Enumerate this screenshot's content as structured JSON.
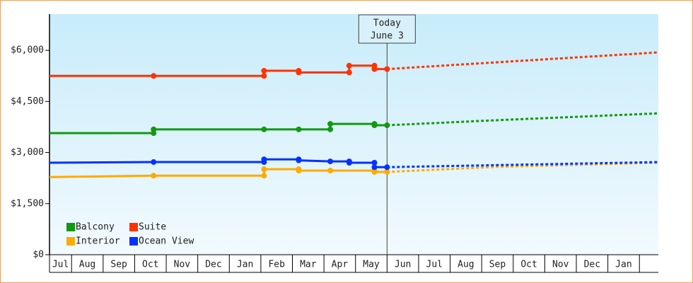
{
  "chart_data": {
    "type": "line",
    "xlim": [
      0.3,
      19.6
    ],
    "xticks": [
      {
        "value": 0,
        "label": "Jul"
      },
      {
        "value": 1,
        "label": "Aug"
      },
      {
        "value": 2,
        "label": "Sep"
      },
      {
        "value": 3,
        "label": "Oct"
      },
      {
        "value": 4,
        "label": "Nov"
      },
      {
        "value": 5,
        "label": "Dec"
      },
      {
        "value": 6,
        "label": "Jan"
      },
      {
        "value": 7,
        "label": "Feb"
      },
      {
        "value": 8,
        "label": "Mar"
      },
      {
        "value": 9,
        "label": "Apr"
      },
      {
        "value": 10,
        "label": "May"
      },
      {
        "value": 11,
        "label": "Jun"
      },
      {
        "value": 12,
        "label": "Jul"
      },
      {
        "value": 13,
        "label": "Aug"
      },
      {
        "value": 14,
        "label": "Sep"
      },
      {
        "value": 15,
        "label": "Oct"
      },
      {
        "value": 16,
        "label": "Nov"
      },
      {
        "value": 17,
        "label": "Dec"
      },
      {
        "value": 18,
        "label": "Jan"
      }
    ],
    "ylim": [
      0,
      7000
    ],
    "yticks": [
      {
        "value": 0,
        "label": "$0"
      },
      {
        "value": 1500,
        "label": "$1,500"
      },
      {
        "value": 3000,
        "label": "$3,000"
      },
      {
        "value": 4500,
        "label": "$4,500"
      },
      {
        "value": 6000,
        "label": "$6,000"
      }
    ],
    "today": {
      "x": 11.0,
      "label": "Today",
      "date": "June 3"
    },
    "series": [
      {
        "name": "Balcony",
        "color": "#119911",
        "x": [
          0.3,
          3.6,
          3.6,
          7.1,
          8.2,
          9.2,
          9.2,
          10.6,
          10.6,
          11.0
        ],
        "values": [
          3570,
          3570,
          3680,
          3680,
          3680,
          3680,
          3840,
          3840,
          3800,
          3800
        ],
        "forecast": {
          "x": [
            11.0,
            14.5,
            19.6
          ],
          "values": [
            3800,
            3950,
            4150
          ]
        }
      },
      {
        "name": "Suite",
        "color": "#ff3300",
        "x": [
          0.3,
          3.6,
          7.1,
          7.1,
          8.2,
          8.2,
          9.8,
          9.8,
          10.6,
          10.6,
          11.0
        ],
        "values": [
          5250,
          5250,
          5250,
          5400,
          5400,
          5350,
          5350,
          5550,
          5550,
          5450,
          5450
        ],
        "forecast": {
          "x": [
            11.0,
            14.5,
            19.6
          ],
          "values": [
            5450,
            5650,
            5940
          ]
        }
      },
      {
        "name": "Interior",
        "color": "#ffaa00",
        "x": [
          0.3,
          3.6,
          7.1,
          7.1,
          8.2,
          8.2,
          9.2,
          10.6,
          10.6,
          11.0
        ],
        "values": [
          2280,
          2320,
          2320,
          2510,
          2510,
          2470,
          2470,
          2470,
          2430,
          2430
        ],
        "forecast": {
          "x": [
            11.0,
            14.5,
            19.6
          ],
          "values": [
            2430,
            2580,
            2700
          ]
        }
      },
      {
        "name": "Ocean View",
        "color": "#0033ff",
        "x": [
          0.3,
          3.6,
          7.1,
          7.1,
          8.2,
          8.2,
          9.2,
          9.8,
          9.8,
          10.6,
          10.6,
          11.0
        ],
        "values": [
          2700,
          2720,
          2720,
          2800,
          2800,
          2770,
          2740,
          2740,
          2700,
          2700,
          2570,
          2570
        ],
        "forecast": {
          "x": [
            11.0,
            14.5,
            19.6
          ],
          "values": [
            2570,
            2630,
            2720
          ]
        }
      }
    ]
  }
}
